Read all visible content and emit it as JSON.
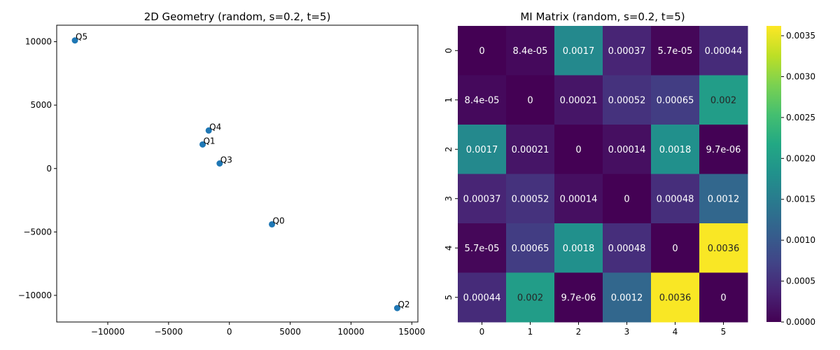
{
  "chart_data": [
    {
      "type": "scatter",
      "title": "2D Geometry (random, s=0.2, t=5)",
      "xlabel": "",
      "ylabel": "",
      "xlim": [
        -14200,
        15500
      ],
      "ylim": [
        -12100,
        11300
      ],
      "xticks": [
        -10000,
        -5000,
        0,
        5000,
        10000,
        15000
      ],
      "xtick_labels": [
        "−10000",
        "−5000",
        "0",
        "5000",
        "10000",
        "15000"
      ],
      "yticks": [
        -10000,
        -5000,
        0,
        5000,
        10000
      ],
      "ytick_labels": [
        "−10000",
        "−5000",
        "0",
        "5000",
        "10000"
      ],
      "grid": false,
      "marker_color": "#1f77b4",
      "points": [
        {
          "label": "Q0",
          "x": 3500,
          "y": -4400
        },
        {
          "label": "Q1",
          "x": -2200,
          "y": 1900
        },
        {
          "label": "Q2",
          "x": 13800,
          "y": -11000
        },
        {
          "label": "Q3",
          "x": -800,
          "y": 400
        },
        {
          "label": "Q4",
          "x": -1700,
          "y": 3000
        },
        {
          "label": "Q5",
          "x": -12700,
          "y": 10100
        }
      ]
    },
    {
      "type": "heatmap",
      "title": "MI Matrix (random, s=0.2, t=5)",
      "colormap": "viridis",
      "xticks": [
        "0",
        "1",
        "2",
        "3",
        "4",
        "5"
      ],
      "yticks": [
        "0",
        "1",
        "2",
        "3",
        "4",
        "5"
      ],
      "values": [
        [
          0,
          8.4e-05,
          0.0017,
          0.00037,
          5.7e-05,
          0.00044
        ],
        [
          8.4e-05,
          0,
          0.00021,
          0.00052,
          0.00065,
          0.002
        ],
        [
          0.0017,
          0.00021,
          0,
          0.00014,
          0.0018,
          9.7e-06
        ],
        [
          0.00037,
          0.00052,
          0.00014,
          0,
          0.00048,
          0.0012
        ],
        [
          5.7e-05,
          0.00065,
          0.0018,
          0.00048,
          0,
          0.0036
        ],
        [
          0.00044,
          0.002,
          9.7e-06,
          0.0012,
          0.0036,
          0
        ]
      ],
      "annotations": [
        [
          "0",
          "8.4e-05",
          "0.0017",
          "0.00037",
          "5.7e-05",
          "0.00044"
        ],
        [
          "8.4e-05",
          "0",
          "0.00021",
          "0.00052",
          "0.00065",
          "0.002"
        ],
        [
          "0.0017",
          "0.00021",
          "0",
          "0.00014",
          "0.0018",
          "9.7e-06"
        ],
        [
          "0.00037",
          "0.00052",
          "0.00014",
          "0",
          "0.00048",
          "0.0012"
        ],
        [
          "5.7e-05",
          "0.00065",
          "0.0018",
          "0.00048",
          "0",
          "0.0036"
        ],
        [
          "0.00044",
          "0.002",
          "9.7e-06",
          "0.0012",
          "0.0036",
          "0"
        ]
      ],
      "vmin": 0,
      "vmax": 0.00362,
      "colorbar_ticks": [
        0,
        0.0005,
        0.001,
        0.0015,
        0.002,
        0.0025,
        0.003,
        0.0035
      ],
      "colorbar_tick_labels": [
        "0.0000",
        "0.0005",
        "0.0010",
        "0.0015",
        "0.0020",
        "0.0025",
        "0.0030",
        "0.0035"
      ]
    }
  ]
}
